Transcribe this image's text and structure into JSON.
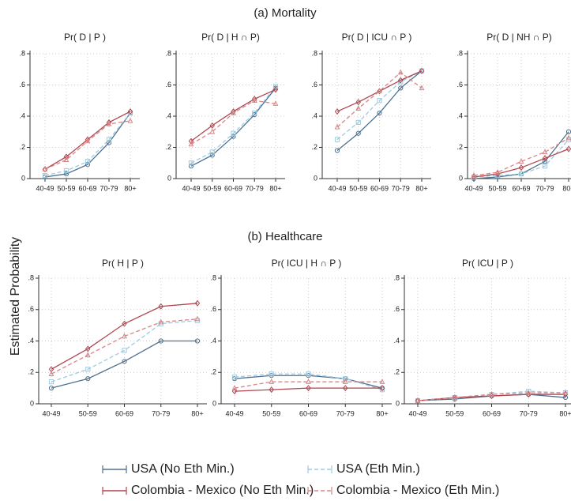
{
  "sections": [
    "(a) Mortality",
    "(b) Healthcare"
  ],
  "y_label": "Estimated Probability",
  "chart_data": [
    {
      "type": "line",
      "title": "Pr( D | P )",
      "categories": [
        "40-49",
        "50-59",
        "60-69",
        "70-79",
        "80+"
      ],
      "ylim": [
        0,
        0.8
      ],
      "yticks": [
        0,
        {
          "value": 0.2,
          "label": ".2"
        },
        {
          "value": 0.4,
          "label": ".4"
        },
        {
          "value": 0.6,
          "label": ".6"
        },
        {
          "value": 0.8,
          "label": ".8"
        }
      ],
      "grid": true,
      "series": [
        {
          "name": "USA (No Eth Min.)",
          "color": "#4e7190",
          "values": [
            0.01,
            0.03,
            0.09,
            0.23,
            0.42
          ]
        },
        {
          "name": "USA (Eth Min.)",
          "color": "#9ccbe0",
          "values": [
            0.02,
            0.05,
            0.11,
            0.25,
            0.42
          ]
        },
        {
          "name": "Colombia - Mexico (No Eth Min.)",
          "color": "#b0454e",
          "values": [
            0.06,
            0.14,
            0.25,
            0.36,
            0.43
          ]
        },
        {
          "name": "Colombia - Mexico (Eth Min.)",
          "color": "#d98585",
          "values": [
            0.06,
            0.12,
            0.24,
            0.35,
            0.37
          ]
        }
      ]
    },
    {
      "type": "line",
      "title": "Pr( D | H ∩ P)",
      "categories": [
        "40-49",
        "50-59",
        "60-69",
        "70-79",
        "80+"
      ],
      "ylim": [
        0,
        0.8
      ],
      "yticks": [
        0,
        {
          "value": 0.2,
          "label": ".2"
        },
        {
          "value": 0.4,
          "label": ".4"
        },
        {
          "value": 0.6,
          "label": ".6"
        },
        {
          "value": 0.8,
          "label": ".8"
        }
      ],
      "grid": true,
      "series": [
        {
          "name": "USA (No Eth Min.)",
          "color": "#4e7190",
          "values": [
            0.08,
            0.15,
            0.27,
            0.41,
            0.58
          ]
        },
        {
          "name": "USA (Eth Min.)",
          "color": "#9ccbe0",
          "values": [
            0.1,
            0.17,
            0.29,
            0.42,
            0.59
          ]
        },
        {
          "name": "Colombia - Mexico (No Eth Min.)",
          "color": "#b0454e",
          "values": [
            0.24,
            0.34,
            0.43,
            0.51,
            0.57
          ]
        },
        {
          "name": "Colombia - Mexico (Eth Min.)",
          "color": "#d98585",
          "values": [
            0.22,
            0.3,
            0.42,
            0.5,
            0.48
          ]
        }
      ]
    },
    {
      "type": "line",
      "title": "Pr( D | ICU ∩ P )",
      "categories": [
        "40-49",
        "50-59",
        "60-69",
        "70-79",
        "80+"
      ],
      "ylim": [
        0,
        0.8
      ],
      "yticks": [
        0,
        {
          "value": 0.2,
          "label": ".2"
        },
        {
          "value": 0.4,
          "label": ".4"
        },
        {
          "value": 0.6,
          "label": ".6"
        },
        {
          "value": 0.8,
          "label": ".8"
        }
      ],
      "grid": true,
      "series": [
        {
          "name": "USA (No Eth Min.)",
          "color": "#4e7190",
          "values": [
            0.18,
            0.29,
            0.42,
            0.58,
            0.69
          ]
        },
        {
          "name": "USA (Eth Min.)",
          "color": "#9ccbe0",
          "values": [
            0.25,
            0.36,
            0.5,
            0.62,
            0.69
          ]
        },
        {
          "name": "Colombia - Mexico (No Eth Min.)",
          "color": "#b0454e",
          "values": [
            0.43,
            0.49,
            0.56,
            0.63,
            0.69
          ]
        },
        {
          "name": "Colombia - Mexico (Eth Min.)",
          "color": "#d98585",
          "values": [
            0.33,
            0.45,
            0.56,
            0.68,
            0.58
          ]
        }
      ]
    },
    {
      "type": "line",
      "title": "Pr( D | NH ∩ P)",
      "categories": [
        "40-49",
        "50-59",
        "60-69",
        "70-79",
        "80+"
      ],
      "ylim": [
        0,
        0.8
      ],
      "yticks": [
        0,
        {
          "value": 0.2,
          "label": ".2"
        },
        {
          "value": 0.4,
          "label": ".4"
        },
        {
          "value": 0.6,
          "label": ".6"
        },
        {
          "value": 0.8,
          "label": ".8"
        }
      ],
      "grid": true,
      "series": [
        {
          "name": "USA (No Eth Min.)",
          "color": "#4e7190",
          "values": [
            0.0,
            0.01,
            0.03,
            0.11,
            0.3
          ]
        },
        {
          "name": "USA (Eth Min.)",
          "color": "#9ccbe0",
          "values": [
            0.01,
            0.02,
            0.03,
            0.08,
            0.25
          ]
        },
        {
          "name": "Colombia - Mexico (No Eth Min.)",
          "color": "#b0454e",
          "values": [
            0.01,
            0.03,
            0.07,
            0.13,
            0.19
          ]
        },
        {
          "name": "Colombia - Mexico (Eth Min.)",
          "color": "#d98585",
          "values": [
            0.02,
            0.04,
            0.11,
            0.17,
            0.26
          ]
        }
      ]
    },
    {
      "type": "line",
      "title": "Pr( H | P )",
      "categories": [
        "40-49",
        "50-59",
        "60-69",
        "70-79",
        "80+"
      ],
      "ylim": [
        0,
        0.8
      ],
      "yticks": [
        0,
        {
          "value": 0.2,
          "label": ".2"
        },
        {
          "value": 0.4,
          "label": ".4"
        },
        {
          "value": 0.6,
          "label": ".6"
        },
        {
          "value": 0.8,
          "label": ".8"
        }
      ],
      "grid": true,
      "series": [
        {
          "name": "USA (No Eth Min.)",
          "color": "#4e7190",
          "values": [
            0.1,
            0.16,
            0.27,
            0.4,
            0.4
          ]
        },
        {
          "name": "USA (Eth Min.)",
          "color": "#9ccbe0",
          "values": [
            0.14,
            0.22,
            0.34,
            0.51,
            0.53
          ]
        },
        {
          "name": "Colombia - Mexico (No Eth Min.)",
          "color": "#b0454e",
          "values": [
            0.22,
            0.35,
            0.51,
            0.62,
            0.64
          ]
        },
        {
          "name": "Colombia - Mexico (Eth Min.)",
          "color": "#d98585",
          "values": [
            0.19,
            0.31,
            0.43,
            0.52,
            0.54
          ]
        }
      ]
    },
    {
      "type": "line",
      "title": "Pr( ICU | H ∩ P )",
      "categories": [
        "40-49",
        "50-59",
        "60-69",
        "70-79",
        "80+"
      ],
      "ylim": [
        0,
        0.8
      ],
      "yticks": [
        0,
        {
          "value": 0.2,
          "label": ".2"
        },
        {
          "value": 0.4,
          "label": ".4"
        },
        {
          "value": 0.6,
          "label": ".6"
        },
        {
          "value": 0.8,
          "label": ".8"
        }
      ],
      "grid": true,
      "series": [
        {
          "name": "USA (No Eth Min.)",
          "color": "#4e7190",
          "values": [
            0.16,
            0.18,
            0.18,
            0.16,
            0.1
          ]
        },
        {
          "name": "USA (Eth Min.)",
          "color": "#9ccbe0",
          "values": [
            0.17,
            0.19,
            0.19,
            0.16,
            0.09
          ]
        },
        {
          "name": "Colombia - Mexico (No Eth Min.)",
          "color": "#b0454e",
          "values": [
            0.08,
            0.09,
            0.1,
            0.1,
            0.1
          ]
        },
        {
          "name": "Colombia - Mexico (Eth Min.)",
          "color": "#d98585",
          "values": [
            0.1,
            0.14,
            0.14,
            0.14,
            0.14
          ]
        }
      ]
    },
    {
      "type": "line",
      "title": "Pr( ICU | P )",
      "categories": [
        "40-49",
        "50-59",
        "60-69",
        "70-79",
        "80+"
      ],
      "ylim": [
        0,
        0.8
      ],
      "yticks": [
        0,
        {
          "value": 0.2,
          "label": ".2"
        },
        {
          "value": 0.4,
          "label": ".4"
        },
        {
          "value": 0.6,
          "label": ".6"
        },
        {
          "value": 0.8,
          "label": ".8"
        }
      ],
      "grid": true,
      "series": [
        {
          "name": "USA (No Eth Min.)",
          "color": "#4e7190",
          "values": [
            0.02,
            0.03,
            0.05,
            0.06,
            0.04
          ]
        },
        {
          "name": "USA (Eth Min.)",
          "color": "#9ccbe0",
          "values": [
            0.02,
            0.04,
            0.06,
            0.08,
            0.07
          ]
        },
        {
          "name": "Colombia - Mexico (No Eth Min.)",
          "color": "#b0454e",
          "values": [
            0.02,
            0.04,
            0.05,
            0.06,
            0.06
          ]
        },
        {
          "name": "Colombia - Mexico (Eth Min.)",
          "color": "#d98585",
          "values": [
            0.02,
            0.04,
            0.06,
            0.07,
            0.07
          ]
        }
      ]
    }
  ]
}
